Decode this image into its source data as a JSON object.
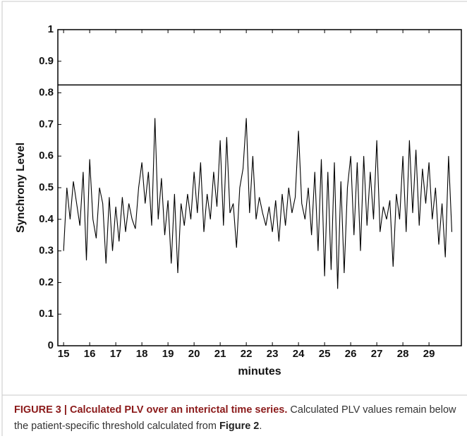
{
  "chart_data": {
    "type": "line",
    "ylabel": "Synchrony Level",
    "xlabel": "minutes",
    "x": [
      15,
      15.125,
      15.25,
      15.375,
      15.5,
      15.625,
      15.75,
      15.875,
      16,
      16.125,
      16.25,
      16.375,
      16.5,
      16.625,
      16.75,
      16.875,
      17,
      17.125,
      17.25,
      17.375,
      17.5,
      17.625,
      17.75,
      17.875,
      18,
      18.125,
      18.25,
      18.375,
      18.5,
      18.625,
      18.75,
      18.875,
      19,
      19.125,
      19.25,
      19.375,
      19.5,
      19.625,
      19.75,
      19.875,
      20,
      20.125,
      20.25,
      20.375,
      20.5,
      20.625,
      20.75,
      20.875,
      21,
      21.125,
      21.25,
      21.375,
      21.5,
      21.625,
      21.75,
      21.875,
      22,
      22.125,
      22.25,
      22.375,
      22.5,
      22.625,
      22.75,
      22.875,
      23,
      23.125,
      23.25,
      23.375,
      23.5,
      23.625,
      23.75,
      23.875,
      24,
      24.125,
      24.25,
      24.375,
      24.5,
      24.625,
      24.75,
      24.875,
      25,
      25.125,
      25.25,
      25.375,
      25.5,
      25.625,
      25.75,
      25.875,
      26,
      26.125,
      26.25,
      26.375,
      26.5,
      26.625,
      26.75,
      26.875,
      27,
      27.125,
      27.25,
      27.375,
      27.5,
      27.625,
      27.75,
      27.875,
      28,
      28.125,
      28.25,
      28.375,
      28.5,
      28.625,
      28.75,
      28.875,
      29,
      29.125,
      29.25,
      29.375,
      29.5,
      29.625,
      29.75,
      29.875
    ],
    "series": [
      {
        "color": "#000000",
        "values": [
          0.3,
          0.5,
          0.4,
          0.52,
          0.45,
          0.38,
          0.55,
          0.27,
          0.59,
          0.4,
          0.34,
          0.5,
          0.45,
          0.26,
          0.47,
          0.3,
          0.44,
          0.33,
          0.47,
          0.36,
          0.45,
          0.4,
          0.37,
          0.5,
          0.58,
          0.45,
          0.55,
          0.38,
          0.72,
          0.4,
          0.53,
          0.35,
          0.46,
          0.26,
          0.48,
          0.23,
          0.45,
          0.38,
          0.48,
          0.4,
          0.55,
          0.42,
          0.58,
          0.36,
          0.48,
          0.4,
          0.55,
          0.44,
          0.65,
          0.38,
          0.66,
          0.42,
          0.45,
          0.31,
          0.5,
          0.56,
          0.72,
          0.42,
          0.6,
          0.4,
          0.47,
          0.42,
          0.38,
          0.44,
          0.36,
          0.46,
          0.33,
          0.48,
          0.38,
          0.5,
          0.42,
          0.47,
          0.68,
          0.45,
          0.4,
          0.5,
          0.35,
          0.55,
          0.3,
          0.59,
          0.22,
          0.55,
          0.24,
          0.58,
          0.18,
          0.52,
          0.23,
          0.5,
          0.6,
          0.35,
          0.58,
          0.3,
          0.6,
          0.38,
          0.55,
          0.4,
          0.65,
          0.36,
          0.44,
          0.4,
          0.46,
          0.25,
          0.48,
          0.4,
          0.6,
          0.36,
          0.65,
          0.42,
          0.62,
          0.38,
          0.56,
          0.45,
          0.58,
          0.4,
          0.5,
          0.32,
          0.45,
          0.28,
          0.6,
          0.36
        ]
      }
    ],
    "threshold": 0.825,
    "xlim": [
      14.78,
      30.24
    ],
    "ylim": [
      0,
      1
    ],
    "xticks": [
      15,
      16,
      17,
      18,
      19,
      20,
      21,
      22,
      23,
      24,
      25,
      26,
      27,
      28,
      29
    ],
    "yticks": [
      0,
      0.1,
      0.2,
      0.3,
      0.4,
      0.5,
      0.6,
      0.7,
      0.8,
      0.9,
      1
    ]
  },
  "caption": {
    "title": "FIGURE 3 | Calculated PLV over an interictal time series.",
    "text_before": "Calculated PLV values remain below the patient-specific threshold calculated from",
    "ref": "Figure 2",
    "text_after": "."
  }
}
